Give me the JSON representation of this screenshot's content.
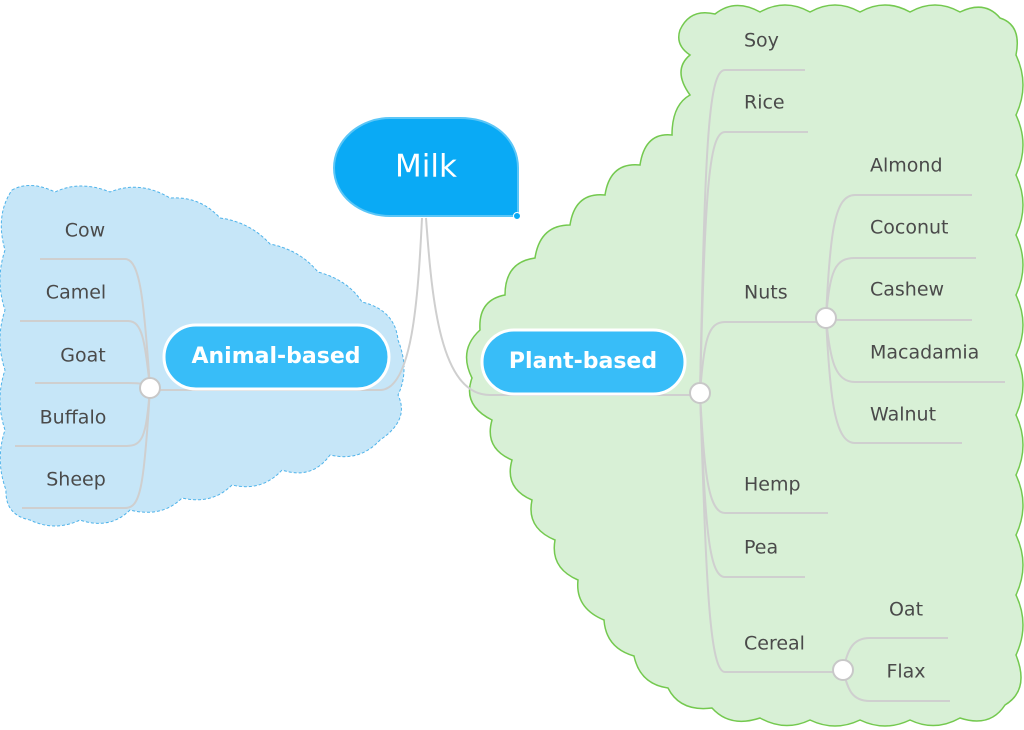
{
  "root": {
    "label": "Milk"
  },
  "animal": {
    "label": "Animal-based",
    "items": [
      "Cow",
      "Camel",
      "Goat",
      "Buffalo",
      "Sheep"
    ]
  },
  "plant": {
    "label": "Plant-based",
    "items": {
      "soy": "Soy",
      "rice": "Rice",
      "nuts": "Nuts",
      "hemp": "Hemp",
      "pea": "Pea",
      "cereal": "Cereal"
    },
    "nuts": [
      "Almond",
      "Coconut",
      "Cashew",
      "Macadamia",
      "Walnut"
    ],
    "cereal": [
      "Oat",
      "Flax"
    ]
  },
  "colors": {
    "root_fill": "#0aaaf5",
    "topic_fill": "#38bdf8",
    "animal_boundary_fill": "#c6e6f8",
    "animal_boundary_stroke": "#4fb3ea",
    "plant_boundary_fill": "#d8f0d6",
    "plant_boundary_stroke": "#74c94f",
    "line": "#cfcfcf"
  }
}
